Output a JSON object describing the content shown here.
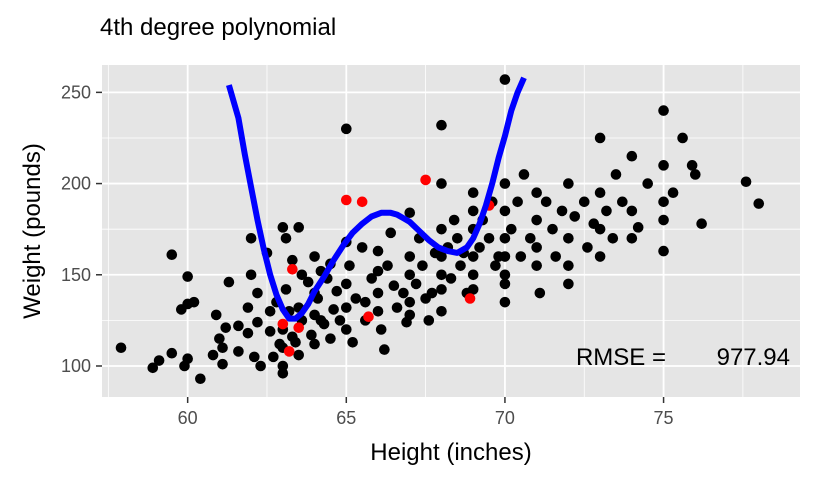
{
  "chart_data": {
    "type": "scatter",
    "title": "4th degree polynomial",
    "xlabel": "Height (inches)",
    "ylabel": "Weight (pounds)",
    "xlim": [
      57.3,
      79.3
    ],
    "ylim": [
      83,
      265
    ],
    "xticks": [
      60,
      65,
      70,
      75
    ],
    "yticks": [
      100,
      150,
      200,
      250
    ],
    "grid": true,
    "annotation": {
      "label": "RMSE =",
      "value": "977.94",
      "position": "bottom-right"
    },
    "colors": {
      "panel": "#e5e5e5",
      "grid": "#ffffff",
      "points": "#000000",
      "highlight": "#ff0000",
      "curve": "#0000ff"
    },
    "series": [
      {
        "role": "points",
        "points": [
          [
            57.9,
            110
          ],
          [
            58.9,
            99
          ],
          [
            59.1,
            103
          ],
          [
            59.5,
            107
          ],
          [
            59.5,
            161
          ],
          [
            59.8,
            131
          ],
          [
            59.9,
            100
          ],
          [
            60,
            149
          ],
          [
            60,
            134
          ],
          [
            60,
            104
          ],
          [
            60.2,
            135
          ],
          [
            60.4,
            93
          ],
          [
            60.8,
            106
          ],
          [
            60.9,
            128
          ],
          [
            61,
            115
          ],
          [
            61.1,
            110
          ],
          [
            61.1,
            101
          ],
          [
            61.2,
            121
          ],
          [
            61.3,
            146
          ],
          [
            61.6,
            122
          ],
          [
            61.6,
            108
          ],
          [
            61.9,
            132
          ],
          [
            61.9,
            118
          ],
          [
            62,
            170
          ],
          [
            62,
            150
          ],
          [
            62.1,
            105
          ],
          [
            62.2,
            140
          ],
          [
            62.2,
            124
          ],
          [
            62.3,
            100
          ],
          [
            62.5,
            162
          ],
          [
            62.6,
            130
          ],
          [
            62.6,
            119
          ],
          [
            62.7,
            105
          ],
          [
            62.8,
            135
          ],
          [
            62.9,
            112
          ],
          [
            63,
            120
          ],
          [
            63,
            176
          ],
          [
            63,
            110
          ],
          [
            63,
            100
          ],
          [
            63,
            96
          ],
          [
            63.1,
            170
          ],
          [
            63.1,
            142
          ],
          [
            63.2,
            130
          ],
          [
            63.3,
            158
          ],
          [
            63.3,
            116
          ],
          [
            63.4,
            113
          ],
          [
            63.5,
            132
          ],
          [
            63.5,
            176
          ],
          [
            63.5,
            106
          ],
          [
            63.6,
            150
          ],
          [
            63.6,
            125
          ],
          [
            63.8,
            146
          ],
          [
            63.9,
            117
          ],
          [
            64,
            160
          ],
          [
            64,
            140
          ],
          [
            64,
            128
          ],
          [
            64,
            112
          ],
          [
            64.1,
            137
          ],
          [
            64.2,
            152
          ],
          [
            64.2,
            125
          ],
          [
            64.3,
            123
          ],
          [
            64.4,
            148
          ],
          [
            64.5,
            115
          ],
          [
            64.5,
            156
          ],
          [
            64.6,
            131
          ],
          [
            64.7,
            141
          ],
          [
            64.8,
            125
          ],
          [
            65,
            230
          ],
          [
            65,
            168
          ],
          [
            65,
            145
          ],
          [
            65,
            132
          ],
          [
            65,
            120
          ],
          [
            65.1,
            155
          ],
          [
            65.2,
            113
          ],
          [
            65.3,
            137
          ],
          [
            65.5,
            165
          ],
          [
            65.6,
            135
          ],
          [
            65.6,
            125
          ],
          [
            65.8,
            148
          ],
          [
            66,
            163
          ],
          [
            66,
            152
          ],
          [
            66,
            140
          ],
          [
            66,
            130
          ],
          [
            66.1,
            120
          ],
          [
            66.2,
            109
          ],
          [
            66.3,
            155
          ],
          [
            66.4,
            173
          ],
          [
            66.5,
            144
          ],
          [
            66.6,
            132
          ],
          [
            66.8,
            140
          ],
          [
            66.9,
            124
          ],
          [
            67,
            184
          ],
          [
            67,
            160
          ],
          [
            67,
            150
          ],
          [
            67,
            135
          ],
          [
            67,
            128
          ],
          [
            67.2,
            145
          ],
          [
            67.3,
            170
          ],
          [
            67.4,
            155
          ],
          [
            67.5,
            137
          ],
          [
            67.6,
            125
          ],
          [
            67.7,
            140
          ],
          [
            67.8,
            162
          ],
          [
            68,
            232
          ],
          [
            68,
            200
          ],
          [
            68,
            175
          ],
          [
            68,
            160
          ],
          [
            68,
            150
          ],
          [
            68,
            142
          ],
          [
            68,
            130
          ],
          [
            68.2,
            165
          ],
          [
            68.3,
            148
          ],
          [
            68.4,
            180
          ],
          [
            68.5,
            170
          ],
          [
            68.6,
            155
          ],
          [
            68.7,
            162
          ],
          [
            68.8,
            140
          ],
          [
            69,
            195
          ],
          [
            69,
            185
          ],
          [
            69,
            175
          ],
          [
            69,
            160
          ],
          [
            69,
            150
          ],
          [
            69,
            142
          ],
          [
            69.2,
            165
          ],
          [
            69.3,
            180
          ],
          [
            69.5,
            170
          ],
          [
            69.6,
            190
          ],
          [
            69.7,
            155
          ],
          [
            69.8,
            160
          ],
          [
            70,
            257
          ],
          [
            70,
            200
          ],
          [
            70,
            185
          ],
          [
            70,
            170
          ],
          [
            70,
            160
          ],
          [
            70,
            150
          ],
          [
            70,
            145
          ],
          [
            70,
            135
          ],
          [
            70.2,
            175
          ],
          [
            70.4,
            190
          ],
          [
            70.5,
            160
          ],
          [
            70.6,
            205
          ],
          [
            70.8,
            170
          ],
          [
            71,
            195
          ],
          [
            71,
            180
          ],
          [
            71,
            165
          ],
          [
            71,
            155
          ],
          [
            71.1,
            140
          ],
          [
            71.3,
            190
          ],
          [
            71.5,
            175
          ],
          [
            71.6,
            160
          ],
          [
            71.8,
            185
          ],
          [
            72,
            200
          ],
          [
            72,
            170
          ],
          [
            72,
            155
          ],
          [
            72,
            145
          ],
          [
            72.2,
            182
          ],
          [
            72.5,
            190
          ],
          [
            72.6,
            165
          ],
          [
            72.8,
            178
          ],
          [
            73,
            225
          ],
          [
            73,
            195
          ],
          [
            73,
            175
          ],
          [
            73,
            160
          ],
          [
            73.2,
            185
          ],
          [
            73.4,
            170
          ],
          [
            73.5,
            205
          ],
          [
            73.7,
            190
          ],
          [
            74,
            215
          ],
          [
            74,
            185
          ],
          [
            74,
            170
          ],
          [
            74.2,
            176
          ],
          [
            74.5,
            200
          ],
          [
            75,
            240
          ],
          [
            75,
            210
          ],
          [
            75,
            190
          ],
          [
            75,
            180
          ],
          [
            75,
            163
          ],
          [
            75.3,
            195
          ],
          [
            75.6,
            225
          ],
          [
            75.9,
            210
          ],
          [
            76,
            205
          ],
          [
            76.2,
            178
          ],
          [
            77.6,
            201
          ],
          [
            78,
            189
          ]
        ]
      },
      {
        "role": "highlighted points",
        "points": [
          [
            63,
            123
          ],
          [
            63.2,
            108
          ],
          [
            63.3,
            153
          ],
          [
            63.5,
            121
          ],
          [
            65,
            191
          ],
          [
            65.5,
            190
          ],
          [
            65.7,
            127
          ],
          [
            67.5,
            202
          ],
          [
            68.9,
            137
          ],
          [
            69.5,
            188
          ]
        ]
      },
      {
        "role": "fitted curve",
        "x": [
          61.3,
          61.6,
          61.8,
          62,
          62.2,
          62.4,
          62.6,
          62.8,
          63,
          63.2,
          63.4,
          63.6,
          63.8,
          64,
          64.3,
          64.6,
          64.9,
          65.2,
          65.5,
          65.8,
          66.1,
          66.4,
          66.6,
          66.8,
          67,
          67.3,
          67.6,
          67.9,
          68.2,
          68.5,
          68.8,
          69,
          69.2,
          69.4,
          69.6,
          69.8,
          70,
          70.2,
          70.4,
          70.6
        ],
        "y": [
          254,
          236,
          216,
          198,
          180,
          164,
          150,
          139,
          131,
          126,
          126,
          129,
          134,
          141,
          149,
          158,
          166,
          173,
          178,
          182,
          184,
          184,
          183,
          181,
          179,
          174,
          169,
          165,
          163,
          162,
          165,
          170,
          178,
          188,
          200,
          214,
          226,
          240,
          250,
          258
        ]
      }
    ]
  }
}
